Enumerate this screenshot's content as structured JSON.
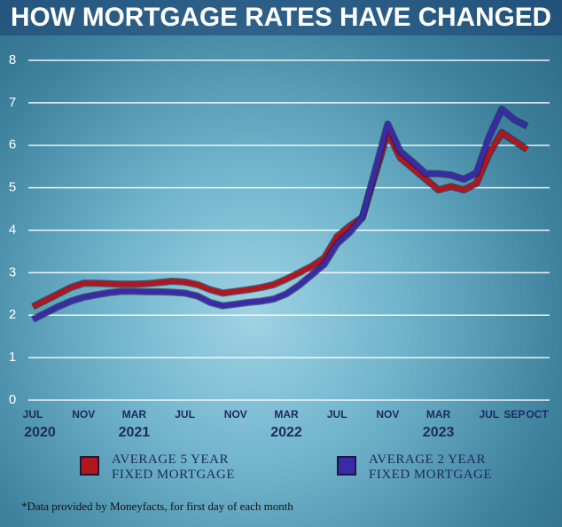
{
  "chart_data": {
    "type": "line",
    "title": "HOW MORTGAGE RATES HAVE CHANGED",
    "note": "*Data provided by Moneyfacts, for first day of each month",
    "x": [
      "2020-07",
      "2020-08",
      "2020-09",
      "2020-10",
      "2020-11",
      "2020-12",
      "2021-01",
      "2021-02",
      "2021-03",
      "2021-04",
      "2021-05",
      "2021-06",
      "2021-07",
      "2021-08",
      "2021-09",
      "2021-10",
      "2021-11",
      "2021-12",
      "2022-01",
      "2022-02",
      "2022-03",
      "2022-04",
      "2022-05",
      "2022-06",
      "2022-07",
      "2022-08",
      "2022-09",
      "2022-10",
      "2022-11",
      "2022-12",
      "2023-01",
      "2023-02",
      "2023-03",
      "2023-04",
      "2023-05",
      "2023-06",
      "2023-07",
      "2023-08",
      "2023-09",
      "2023-10"
    ],
    "series": [
      {
        "name": "AVERAGE 5 YEAR FIXED MORTGAGE",
        "color": "#b3151c",
        "values": [
          2.2,
          2.35,
          2.5,
          2.65,
          2.75,
          2.75,
          2.74,
          2.73,
          2.73,
          2.74,
          2.77,
          2.8,
          2.78,
          2.72,
          2.6,
          2.52,
          2.56,
          2.6,
          2.65,
          2.72,
          2.85,
          3.0,
          3.15,
          3.35,
          3.85,
          4.1,
          4.3,
          5.3,
          6.3,
          5.7,
          5.45,
          5.2,
          4.95,
          5.03,
          4.95,
          5.1,
          5.8,
          6.3,
          6.1,
          5.9
        ]
      },
      {
        "name": "AVERAGE 2 YEAR FIXED MORTGAGE",
        "color": "#3a2aa6",
        "values": [
          1.9,
          2.05,
          2.2,
          2.33,
          2.42,
          2.48,
          2.53,
          2.56,
          2.56,
          2.55,
          2.55,
          2.54,
          2.52,
          2.45,
          2.3,
          2.22,
          2.26,
          2.3,
          2.33,
          2.38,
          2.5,
          2.7,
          2.95,
          3.2,
          3.68,
          3.95,
          4.3,
          5.4,
          6.5,
          5.85,
          5.6,
          5.33,
          5.33,
          5.3,
          5.2,
          5.35,
          6.2,
          6.85,
          6.6,
          6.45
        ]
      }
    ],
    "ylim": [
      0,
      8
    ],
    "yticks": [
      0,
      1,
      2,
      3,
      4,
      5,
      6,
      7,
      8
    ],
    "grid": true,
    "xticks": [
      {
        "value": "2020-07",
        "label": "JUL"
      },
      {
        "value": "2020-11",
        "label": "NOV"
      },
      {
        "value": "2021-03",
        "label": "MAR"
      },
      {
        "value": "2021-07",
        "label": "JUL"
      },
      {
        "value": "2021-11",
        "label": "NOV"
      },
      {
        "value": "2022-03",
        "label": "MAR"
      },
      {
        "value": "2022-07",
        "label": "JUL"
      },
      {
        "value": "2022-11",
        "label": "NOV"
      },
      {
        "value": "2023-03",
        "label": "MAR"
      },
      {
        "value": "2023-07",
        "label": "JUL"
      },
      {
        "value": "2023-09",
        "label": "SEP"
      },
      {
        "value": "2023-10",
        "label": "OCT"
      }
    ],
    "x_year_labels": [
      {
        "value": "2020-07",
        "label": "2020"
      },
      {
        "value": "2021-03",
        "label": "2021"
      },
      {
        "value": "2022-03",
        "label": "2022"
      },
      {
        "value": "2023-03",
        "label": "2023"
      }
    ]
  }
}
